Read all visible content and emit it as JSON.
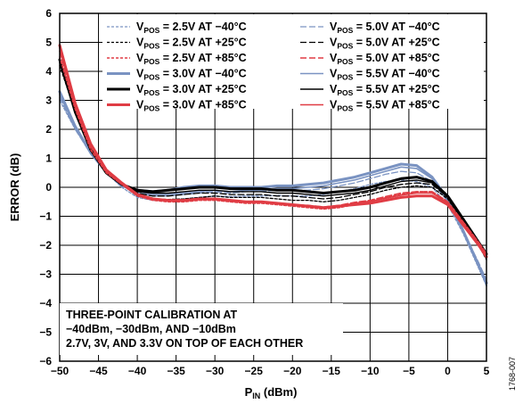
{
  "figure_id": "1768-007",
  "chart_data": {
    "type": "line",
    "xlabel": "P",
    "xlabel_sub": "IN",
    "xlabel_unit": " (dBm)",
    "ylabel": "ERROR (dB)",
    "xlim": [
      -50,
      5
    ],
    "ylim": [
      -6,
      6
    ],
    "grid": true,
    "x_ticks": [
      "−50",
      "−45",
      "−40",
      "−35",
      "−30",
      "−25",
      "−20",
      "−15",
      "−10",
      "−5",
      "0",
      "5"
    ],
    "y_ticks": [
      "6",
      "5",
      "4",
      "3",
      "2",
      "1",
      "0",
      "−1",
      "−2",
      "−3",
      "−4",
      "−5",
      "−6"
    ],
    "legend_position": "top-right",
    "annotation": [
      "THREE-POINT CALIBRATION AT",
      "−40dBm, −30dBm, AND −10dBm",
      "2.7V, 3V, AND 3.3V ON TOP OF EACH OTHER"
    ],
    "colors": {
      "blue": "#7a93c2",
      "black": "#000000",
      "red": "#e03c44"
    },
    "series": [
      {
        "sub": "POS",
        "pre": "V",
        "post": " = 2.5V AT −40°C",
        "color": "#7a93c2",
        "dash": "dash_small",
        "width": 1.3,
        "x": [
          -50,
          -48,
          -46,
          -44,
          -42,
          -40,
          -38,
          -36,
          -34,
          -32,
          -30,
          -28,
          -26,
          -24,
          -22,
          -20,
          -18,
          -16,
          -14,
          -12,
          -10,
          -8,
          -6,
          -4,
          -2,
          0,
          2,
          4,
          5
        ],
        "y": [
          3.0,
          2.0,
          1.2,
          0.5,
          0.0,
          -0.35,
          -0.45,
          -0.45,
          -0.4,
          -0.35,
          -0.3,
          -0.32,
          -0.3,
          -0.3,
          -0.28,
          -0.3,
          -0.3,
          -0.25,
          -0.15,
          -0.05,
          0.1,
          0.2,
          0.25,
          0.2,
          0.0,
          -0.6,
          -1.6,
          -2.8,
          -3.4
        ]
      },
      {
        "sub": "POS",
        "pre": "V",
        "post": " = 2.5V AT +25°C",
        "color": "#000000",
        "dash": "dash_small",
        "width": 1.3,
        "x": [
          -50,
          -48,
          -46,
          -44,
          -42,
          -40,
          -38,
          -36,
          -34,
          -32,
          -30,
          -28,
          -26,
          -24,
          -22,
          -20,
          -18,
          -16,
          -14,
          -12,
          -10,
          -8,
          -6,
          -4,
          -2,
          0,
          2,
          4,
          5
        ],
        "y": [
          4.2,
          2.6,
          1.3,
          0.5,
          0.1,
          -0.3,
          -0.4,
          -0.42,
          -0.4,
          -0.35,
          -0.3,
          -0.35,
          -0.35,
          -0.35,
          -0.4,
          -0.45,
          -0.45,
          -0.5,
          -0.45,
          -0.35,
          -0.25,
          -0.1,
          0.0,
          0.05,
          0.0,
          -0.4,
          -1.2,
          -2.0,
          -2.5
        ]
      },
      {
        "sub": "POS",
        "pre": "V",
        "post": " = 2.5V AT +85°C",
        "color": "#e03c44",
        "dash": "dash_small",
        "width": 1.6,
        "x": [
          -50,
          -48,
          -46,
          -44,
          -42,
          -40,
          -38,
          -36,
          -34,
          -32,
          -30,
          -28,
          -26,
          -24,
          -22,
          -20,
          -18,
          -16,
          -14,
          -12,
          -10,
          -8,
          -6,
          -4,
          -2,
          0,
          2,
          4,
          5
        ],
        "y": [
          4.5,
          2.7,
          1.3,
          0.5,
          0.1,
          -0.3,
          -0.45,
          -0.5,
          -0.5,
          -0.45,
          -0.45,
          -0.5,
          -0.55,
          -0.55,
          -0.6,
          -0.65,
          -0.7,
          -0.75,
          -0.7,
          -0.6,
          -0.5,
          -0.35,
          -0.25,
          -0.15,
          -0.15,
          -0.5,
          -1.2,
          -1.9,
          -2.3
        ]
      },
      {
        "sub": "POS",
        "pre": "V",
        "post": " = 3.0V AT −40°C",
        "color": "#7a93c2",
        "dash": "solid",
        "width": 3,
        "x": [
          -50,
          -48,
          -46,
          -44,
          -42,
          -40,
          -38,
          -36,
          -34,
          -32,
          -30,
          -28,
          -26,
          -24,
          -22,
          -20,
          -18,
          -16,
          -14,
          -12,
          -10,
          -8,
          -6,
          -4,
          -2,
          0,
          2,
          4,
          5
        ],
        "y": [
          3.3,
          2.1,
          1.2,
          0.55,
          0.05,
          -0.1,
          -0.15,
          -0.1,
          0.0,
          0.05,
          0.05,
          0.0,
          0.0,
          0.0,
          0.05,
          0.05,
          0.1,
          0.15,
          0.25,
          0.35,
          0.5,
          0.65,
          0.8,
          0.75,
          0.35,
          -0.4,
          -1.5,
          -2.7,
          -3.3
        ]
      },
      {
        "sub": "POS",
        "pre": "V",
        "post": " = 3.0V AT +25°C",
        "color": "#000000",
        "dash": "solid",
        "width": 3,
        "x": [
          -50,
          -48,
          -46,
          -44,
          -42,
          -40,
          -38,
          -36,
          -34,
          -32,
          -30,
          -28,
          -26,
          -24,
          -22,
          -20,
          -18,
          -16,
          -14,
          -12,
          -10,
          -8,
          -6,
          -4,
          -2,
          0,
          2,
          4,
          5
        ],
        "y": [
          4.4,
          2.6,
          1.3,
          0.5,
          0.1,
          -0.1,
          -0.15,
          -0.1,
          -0.05,
          0.0,
          0.0,
          -0.05,
          -0.05,
          -0.05,
          -0.1,
          -0.1,
          -0.15,
          -0.2,
          -0.15,
          -0.1,
          0.0,
          0.15,
          0.3,
          0.35,
          0.2,
          -0.3,
          -1.1,
          -1.9,
          -2.3
        ]
      },
      {
        "sub": "POS",
        "pre": "V",
        "post": " = 3.0V AT +85°C",
        "color": "#e03c44",
        "dash": "solid",
        "width": 3,
        "x": [
          -50,
          -48,
          -46,
          -44,
          -42,
          -40,
          -38,
          -36,
          -34,
          -32,
          -30,
          -28,
          -26,
          -24,
          -22,
          -20,
          -18,
          -16,
          -14,
          -12,
          -10,
          -8,
          -6,
          -4,
          -2,
          0,
          2,
          4,
          5
        ],
        "y": [
          4.9,
          2.9,
          1.5,
          0.6,
          0.15,
          -0.25,
          -0.4,
          -0.45,
          -0.45,
          -0.4,
          -0.4,
          -0.45,
          -0.5,
          -0.5,
          -0.55,
          -0.6,
          -0.65,
          -0.7,
          -0.65,
          -0.6,
          -0.55,
          -0.45,
          -0.35,
          -0.3,
          -0.3,
          -0.6,
          -1.3,
          -2.0,
          -2.4
        ]
      },
      {
        "sub": "POS",
        "pre": "V",
        "post": " = 5.0V AT −40°C",
        "color": "#7a93c2",
        "dash": "dash_long",
        "width": 1.3,
        "x": [
          -50,
          -48,
          -46,
          -44,
          -42,
          -40,
          -38,
          -36,
          -34,
          -32,
          -30,
          -28,
          -26,
          -24,
          -22,
          -20,
          -18,
          -16,
          -14,
          -12,
          -10,
          -8,
          -6,
          -4,
          -2,
          0,
          2,
          4,
          5
        ],
        "y": [
          3.1,
          2.0,
          1.15,
          0.5,
          0.05,
          -0.2,
          -0.3,
          -0.3,
          -0.25,
          -0.2,
          -0.15,
          -0.2,
          -0.15,
          -0.15,
          -0.1,
          -0.1,
          -0.1,
          -0.05,
          0.05,
          0.15,
          0.3,
          0.45,
          0.55,
          0.5,
          0.2,
          -0.5,
          -1.5,
          -2.6,
          -3.2
        ]
      },
      {
        "sub": "POS",
        "pre": "V",
        "post": " = 5.0V AT +25°C",
        "color": "#000000",
        "dash": "dash_long",
        "width": 1.3,
        "x": [
          -50,
          -48,
          -46,
          -44,
          -42,
          -40,
          -38,
          -36,
          -34,
          -32,
          -30,
          -28,
          -26,
          -24,
          -22,
          -20,
          -18,
          -16,
          -14,
          -12,
          -10,
          -8,
          -6,
          -4,
          -2,
          0,
          2,
          4,
          5
        ],
        "y": [
          4.3,
          2.6,
          1.3,
          0.5,
          0.1,
          -0.2,
          -0.3,
          -0.3,
          -0.25,
          -0.2,
          -0.2,
          -0.25,
          -0.25,
          -0.25,
          -0.3,
          -0.3,
          -0.35,
          -0.4,
          -0.35,
          -0.25,
          -0.15,
          0.0,
          0.1,
          0.15,
          0.1,
          -0.35,
          -1.15,
          -1.95,
          -2.4
        ]
      },
      {
        "sub": "POS",
        "pre": "V",
        "post": " = 5.0V AT +85°C",
        "color": "#e03c44",
        "dash": "dash_long",
        "width": 1.6,
        "x": [
          -50,
          -48,
          -46,
          -44,
          -42,
          -40,
          -38,
          -36,
          -34,
          -32,
          -30,
          -28,
          -26,
          -24,
          -22,
          -20,
          -18,
          -16,
          -14,
          -12,
          -10,
          -8,
          -6,
          -4,
          -2,
          0,
          2,
          4,
          5
        ],
        "y": [
          4.7,
          2.8,
          1.4,
          0.55,
          0.1,
          -0.25,
          -0.4,
          -0.45,
          -0.45,
          -0.4,
          -0.4,
          -0.45,
          -0.5,
          -0.5,
          -0.55,
          -0.6,
          -0.62,
          -0.68,
          -0.62,
          -0.52,
          -0.45,
          -0.32,
          -0.2,
          -0.15,
          -0.15,
          -0.5,
          -1.2,
          -1.9,
          -2.3
        ]
      },
      {
        "sub": "POS",
        "pre": "V",
        "post": " = 5.5V AT −40°C",
        "color": "#7a93c2",
        "dash": "solid",
        "width": 1.6,
        "x": [
          -50,
          -48,
          -46,
          -44,
          -42,
          -40,
          -38,
          -36,
          -34,
          -32,
          -30,
          -28,
          -26,
          -24,
          -22,
          -20,
          -18,
          -16,
          -14,
          -12,
          -10,
          -8,
          -6,
          -4,
          -2,
          0,
          2,
          4,
          5
        ],
        "y": [
          3.2,
          2.05,
          1.15,
          0.5,
          0.05,
          -0.15,
          -0.25,
          -0.25,
          -0.2,
          -0.15,
          -0.1,
          -0.15,
          -0.1,
          -0.1,
          -0.05,
          -0.05,
          0.0,
          0.05,
          0.15,
          0.25,
          0.4,
          0.55,
          0.7,
          0.65,
          0.3,
          -0.45,
          -1.55,
          -2.7,
          -3.4
        ]
      },
      {
        "sub": "POS",
        "pre": "V",
        "post": " = 5.5V AT +25°C",
        "color": "#000000",
        "dash": "solid",
        "width": 1.4,
        "x": [
          -50,
          -48,
          -46,
          -44,
          -42,
          -40,
          -38,
          -36,
          -34,
          -32,
          -30,
          -28,
          -26,
          -24,
          -22,
          -20,
          -18,
          -16,
          -14,
          -12,
          -10,
          -8,
          -6,
          -4,
          -2,
          0,
          2,
          4,
          5
        ],
        "y": [
          4.3,
          2.6,
          1.3,
          0.5,
          0.1,
          -0.15,
          -0.2,
          -0.2,
          -0.15,
          -0.1,
          -0.1,
          -0.15,
          -0.15,
          -0.15,
          -0.2,
          -0.2,
          -0.25,
          -0.3,
          -0.25,
          -0.2,
          -0.1,
          0.05,
          0.2,
          0.25,
          0.15,
          -0.35,
          -1.15,
          -1.95,
          -2.35
        ]
      },
      {
        "sub": "POS",
        "pre": "V",
        "post": " = 5.5V AT +85°C",
        "color": "#e03c44",
        "dash": "solid",
        "width": 1.6,
        "x": [
          -50,
          -48,
          -46,
          -44,
          -42,
          -40,
          -38,
          -36,
          -34,
          -32,
          -30,
          -28,
          -26,
          -24,
          -22,
          -20,
          -18,
          -16,
          -14,
          -12,
          -10,
          -8,
          -6,
          -4,
          -2,
          0,
          2,
          4,
          5
        ],
        "y": [
          4.8,
          2.85,
          1.45,
          0.55,
          0.12,
          -0.25,
          -0.4,
          -0.45,
          -0.45,
          -0.4,
          -0.42,
          -0.48,
          -0.52,
          -0.52,
          -0.57,
          -0.62,
          -0.65,
          -0.7,
          -0.65,
          -0.55,
          -0.48,
          -0.38,
          -0.27,
          -0.2,
          -0.2,
          -0.55,
          -1.25,
          -1.95,
          -2.35
        ]
      }
    ]
  }
}
